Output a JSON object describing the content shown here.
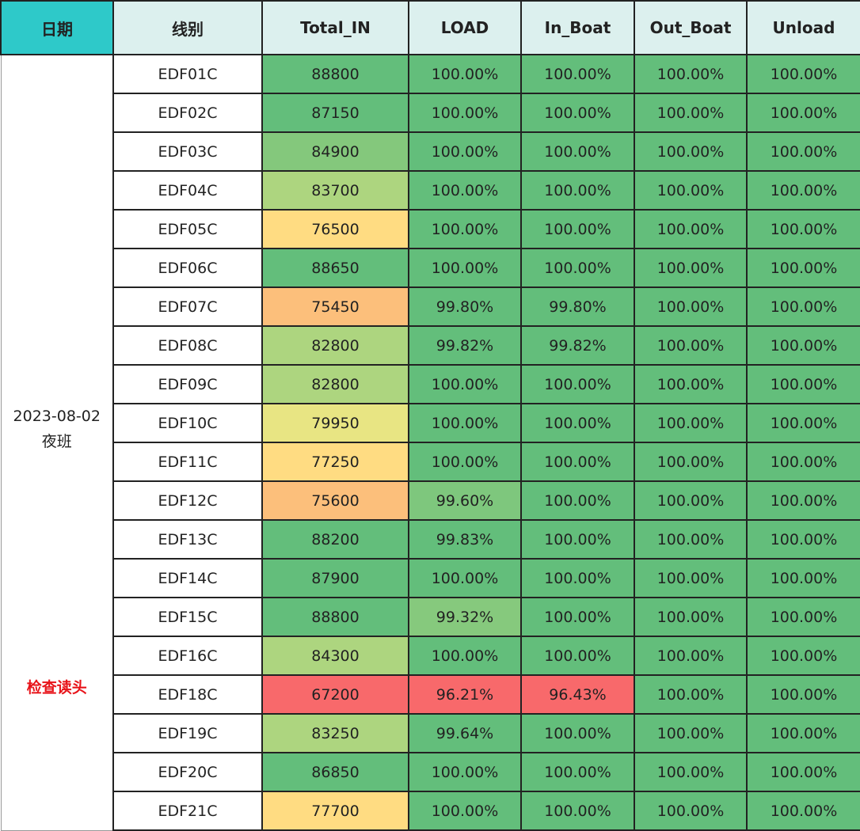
{
  "headers": [
    "日期",
    "线别",
    "Total_IN",
    "LOAD",
    "In_Boat",
    "Out_Boat",
    "Unload"
  ],
  "date": "2023-08-02",
  "shift": "夜班",
  "note": "检查读头",
  "colors": {
    "header_date": "#2ec9c9",
    "header": "#dcf0ee",
    "note": "#e8141a"
  },
  "rows": [
    {
      "line": "EDF01C",
      "total_in": "88800",
      "total_in_color": "#63be7b",
      "load": "100.00%",
      "load_color": "#63be7b",
      "in_boat": "100.00%",
      "in_boat_color": "#63be7b",
      "out_boat": "100.00%",
      "unload": "100.00%"
    },
    {
      "line": "EDF02C",
      "total_in": "87150",
      "total_in_color": "#63be7b",
      "load": "100.00%",
      "load_color": "#63be7b",
      "in_boat": "100.00%",
      "in_boat_color": "#63be7b",
      "out_boat": "100.00%",
      "unload": "100.00%"
    },
    {
      "line": "EDF03C",
      "total_in": "84900",
      "total_in_color": "#84c87c",
      "load": "100.00%",
      "load_color": "#63be7b",
      "in_boat": "100.00%",
      "in_boat_color": "#63be7b",
      "out_boat": "100.00%",
      "unload": "100.00%"
    },
    {
      "line": "EDF04C",
      "total_in": "83700",
      "total_in_color": "#add57f",
      "load": "100.00%",
      "load_color": "#63be7b",
      "in_boat": "100.00%",
      "in_boat_color": "#63be7b",
      "out_boat": "100.00%",
      "unload": "100.00%"
    },
    {
      "line": "EDF05C",
      "total_in": "76500",
      "total_in_color": "#ffdc82",
      "load": "100.00%",
      "load_color": "#63be7b",
      "in_boat": "100.00%",
      "in_boat_color": "#63be7b",
      "out_boat": "100.00%",
      "unload": "100.00%"
    },
    {
      "line": "EDF06C",
      "total_in": "88650",
      "total_in_color": "#63be7b",
      "load": "100.00%",
      "load_color": "#63be7b",
      "in_boat": "100.00%",
      "in_boat_color": "#63be7b",
      "out_boat": "100.00%",
      "unload": "100.00%"
    },
    {
      "line": "EDF07C",
      "total_in": "75450",
      "total_in_color": "#fcbf7b",
      "load": "99.80%",
      "load_color": "#63be7b",
      "in_boat": "99.80%",
      "in_boat_color": "#63be7b",
      "out_boat": "100.00%",
      "unload": "100.00%"
    },
    {
      "line": "EDF08C",
      "total_in": "82800",
      "total_in_color": "#add57f",
      "load": "99.82%",
      "load_color": "#63be7b",
      "in_boat": "99.82%",
      "in_boat_color": "#63be7b",
      "out_boat": "100.00%",
      "unload": "100.00%"
    },
    {
      "line": "EDF09C",
      "total_in": "82800",
      "total_in_color": "#add57f",
      "load": "100.00%",
      "load_color": "#63be7b",
      "in_boat": "100.00%",
      "in_boat_color": "#63be7b",
      "out_boat": "100.00%",
      "unload": "100.00%"
    },
    {
      "line": "EDF10C",
      "total_in": "79950",
      "total_in_color": "#e8e583",
      "load": "100.00%",
      "load_color": "#63be7b",
      "in_boat": "100.00%",
      "in_boat_color": "#63be7b",
      "out_boat": "100.00%",
      "unload": "100.00%"
    },
    {
      "line": "EDF11C",
      "total_in": "77250",
      "total_in_color": "#ffdc82",
      "load": "100.00%",
      "load_color": "#63be7b",
      "in_boat": "100.00%",
      "in_boat_color": "#63be7b",
      "out_boat": "100.00%",
      "unload": "100.00%"
    },
    {
      "line": "EDF12C",
      "total_in": "75600",
      "total_in_color": "#fcbf7b",
      "load": "99.60%",
      "load_color": "#7ec77d",
      "in_boat": "100.00%",
      "in_boat_color": "#63be7b",
      "out_boat": "100.00%",
      "unload": "100.00%"
    },
    {
      "line": "EDF13C",
      "total_in": "88200",
      "total_in_color": "#63be7b",
      "load": "99.83%",
      "load_color": "#63be7b",
      "in_boat": "100.00%",
      "in_boat_color": "#63be7b",
      "out_boat": "100.00%",
      "unload": "100.00%"
    },
    {
      "line": "EDF14C",
      "total_in": "87900",
      "total_in_color": "#63be7b",
      "load": "100.00%",
      "load_color": "#63be7b",
      "in_boat": "100.00%",
      "in_boat_color": "#63be7b",
      "out_boat": "100.00%",
      "unload": "100.00%"
    },
    {
      "line": "EDF15C",
      "total_in": "88800",
      "total_in_color": "#63be7b",
      "load": "99.32%",
      "load_color": "#86c97d",
      "in_boat": "100.00%",
      "in_boat_color": "#63be7b",
      "out_boat": "100.00%",
      "unload": "100.00%"
    },
    {
      "line": "EDF16C",
      "total_in": "84300",
      "total_in_color": "#add57f",
      "load": "100.00%",
      "load_color": "#63be7b",
      "in_boat": "100.00%",
      "in_boat_color": "#63be7b",
      "out_boat": "100.00%",
      "unload": "100.00%"
    },
    {
      "line": "EDF18C",
      "total_in": "67200",
      "total_in_color": "#f8696b",
      "load": "96.21%",
      "load_color": "#f8696b",
      "in_boat": "96.43%",
      "in_boat_color": "#f8696b",
      "out_boat": "100.00%",
      "unload": "100.00%"
    },
    {
      "line": "EDF19C",
      "total_in": "83250",
      "total_in_color": "#add57f",
      "load": "99.64%",
      "load_color": "#63be7b",
      "in_boat": "100.00%",
      "in_boat_color": "#63be7b",
      "out_boat": "100.00%",
      "unload": "100.00%"
    },
    {
      "line": "EDF20C",
      "total_in": "86850",
      "total_in_color": "#63be7b",
      "load": "100.00%",
      "load_color": "#63be7b",
      "in_boat": "100.00%",
      "in_boat_color": "#63be7b",
      "out_boat": "100.00%",
      "unload": "100.00%"
    },
    {
      "line": "EDF21C",
      "total_in": "77700",
      "total_in_color": "#ffdc82",
      "load": "100.00%",
      "load_color": "#63be7b",
      "in_boat": "100.00%",
      "in_boat_color": "#63be7b",
      "out_boat": "100.00%",
      "unload": "100.00%"
    }
  ]
}
